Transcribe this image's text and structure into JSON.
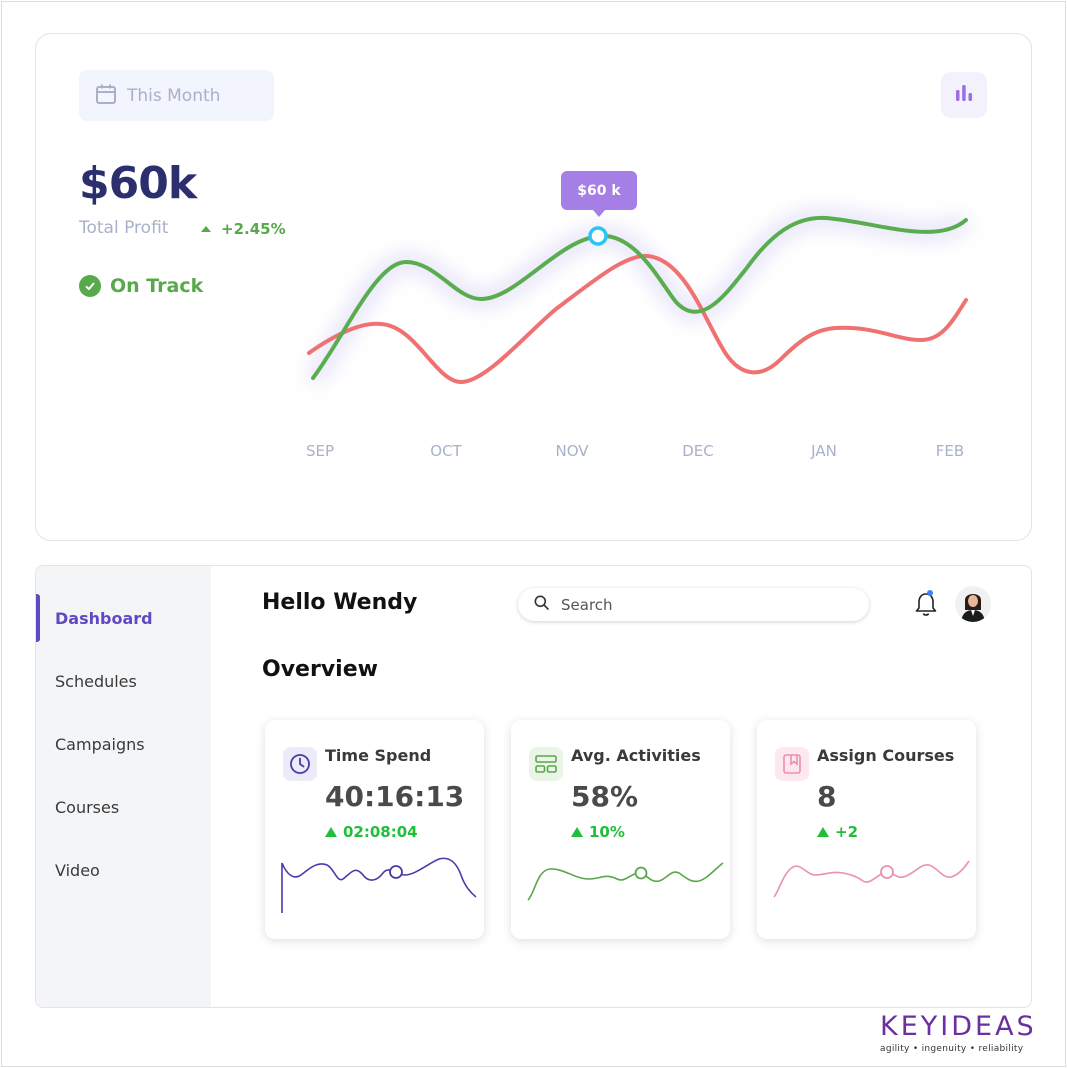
{
  "top": {
    "period_label": "This Month",
    "profit_value": "$60k",
    "profit_label": "Total Profit",
    "profit_change": "+2.45%",
    "status_label": "On Track",
    "tooltip": "$60 k",
    "months": [
      "SEP",
      "OCT",
      "NOV",
      "DEC",
      "JAN",
      "FEB"
    ]
  },
  "nav": {
    "items": [
      {
        "label": "Dashboard",
        "active": true
      },
      {
        "label": "Schedules",
        "active": false
      },
      {
        "label": "Campaigns",
        "active": false
      },
      {
        "label": "Courses",
        "active": false
      },
      {
        "label": "Video",
        "active": false
      }
    ]
  },
  "header": {
    "greeting": "Hello Wendy",
    "search_placeholder": "Search"
  },
  "overview": {
    "title": "Overview",
    "cards": [
      {
        "title": "Time Spend",
        "value": "40:16:13",
        "change": "02:08:04",
        "color": "#4b3aa8"
      },
      {
        "title": "Avg. Activities",
        "value": "58%",
        "change": "10%",
        "color": "#5aa64a"
      },
      {
        "title": "Assign Courses",
        "value": "8",
        "change": "+2",
        "color": "#ec8fb0"
      }
    ]
  },
  "brand": {
    "name": "KEYIDEAS",
    "tagline": "agility  •  ingenuity  •  reliability"
  },
  "colors": {
    "accent": "#6149c4",
    "green_line": "#5aad4e",
    "red_line": "#f07171",
    "tooltip": "#a57ee6"
  }
}
